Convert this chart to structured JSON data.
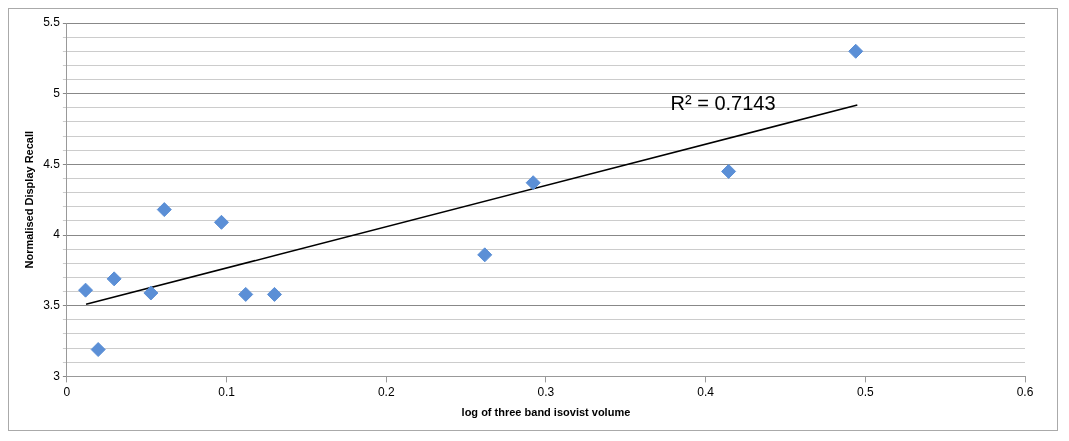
{
  "chart_data": {
    "type": "scatter",
    "xlabel": "log of three band isovist volume",
    "ylabel": "Normalised Display Recall",
    "series": [
      {
        "marker": "diamond",
        "color": "#5b8fd6",
        "x": [
          0.0117,
          0.0196,
          0.0296,
          0.0526,
          0.061,
          0.0968,
          0.112,
          0.13,
          0.2617,
          0.292,
          0.4144,
          0.494
        ],
        "values": [
          3.61,
          3.19,
          3.69,
          3.59,
          4.18,
          4.09,
          3.58,
          3.58,
          3.86,
          4.37,
          4.45,
          5.3
        ]
      },
      {
        "type": "line",
        "marker": "none",
        "color": "#000000",
        "x": [
          0.012,
          0.495
        ],
        "values": [
          3.51,
          4.92
        ]
      }
    ],
    "annotations": [
      "R² = 0.7143"
    ],
    "xlim": [
      0,
      0.6
    ],
    "xticks": [
      0,
      0.1,
      0.2,
      0.3,
      0.4,
      0.5,
      0.6
    ],
    "ylim": [
      3,
      5.5
    ],
    "yticks": [
      3,
      {
        "value": 3.1,
        "label": null
      },
      {
        "value": 3.2,
        "label": null
      },
      {
        "value": 3.3,
        "label": null
      },
      {
        "value": 3.4,
        "label": null
      },
      3.5,
      {
        "value": 3.6,
        "label": null
      },
      {
        "value": 3.7,
        "label": null
      },
      {
        "value": 3.8,
        "label": null
      },
      {
        "value": 3.9,
        "label": null
      },
      4,
      {
        "value": 4.1,
        "label": null
      },
      {
        "value": 4.2,
        "label": null
      },
      {
        "value": 4.3,
        "label": null
      },
      {
        "value": 4.4,
        "label": null
      },
      4.5,
      {
        "value": 4.6,
        "label": null
      },
      {
        "value": 4.7,
        "label": null
      },
      {
        "value": 4.8,
        "label": null
      },
      {
        "value": 4.9,
        "label": null
      },
      5,
      {
        "value": 5.1,
        "label": null
      },
      {
        "value": 5.2,
        "label": null
      },
      {
        "value": 5.3,
        "label": null
      },
      {
        "value": 5.4,
        "label": null
      },
      5.5
    ],
    "grid": "y",
    "legend": false
  }
}
